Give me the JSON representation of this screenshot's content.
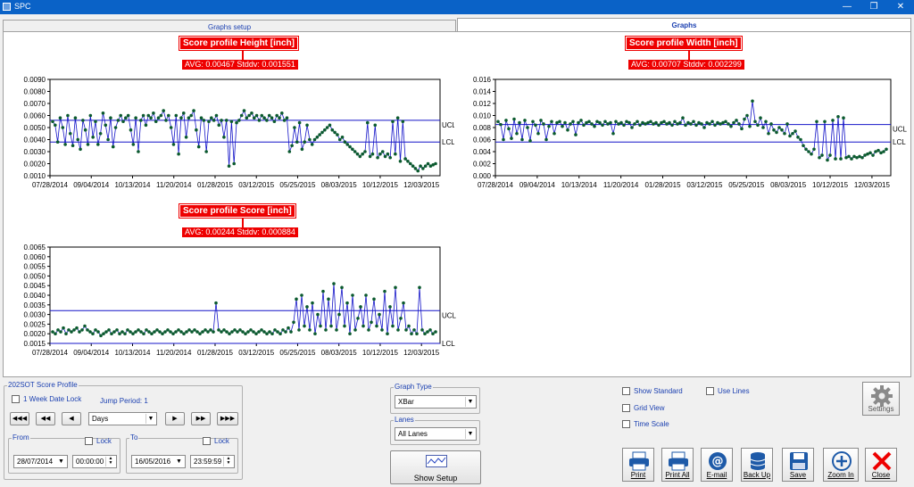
{
  "window": {
    "title": "SPC",
    "minimize": "—",
    "restore": "❐",
    "close": "✕"
  },
  "tabs": [
    {
      "label": "Graphs setup",
      "active": false
    },
    {
      "label": "Graphs",
      "active": true
    }
  ],
  "charts": [
    {
      "title": "Score profile Height  [inch]",
      "stats": "AVG: 0.00467 Stddv: 0.001551",
      "yticks": [
        "0.0090",
        "0.0080",
        "0.0070",
        "0.0060",
        "0.0050",
        "0.0040",
        "0.0030",
        "0.0020",
        "0.0010"
      ],
      "xticks": [
        "07/28/2014",
        "09/04/2014",
        "10/13/2014",
        "11/20/2014",
        "01/28/2015",
        "03/12/2015",
        "05/25/2015",
        "08/03/2015",
        "10/12/2015",
        "12/03/2015"
      ],
      "ucl_label": "UCL",
      "lcl_label": "LCL"
    },
    {
      "title": "Score profile Width  [inch]",
      "stats": "AVG: 0.00707 Stddv: 0.002299",
      "yticks": [
        "0.016",
        "0.014",
        "0.012",
        "0.010",
        "0.008",
        "0.006",
        "0.004",
        "0.002",
        "0.000"
      ],
      "xticks": [
        "07/28/2014",
        "09/04/2014",
        "10/13/2014",
        "11/20/2014",
        "01/28/2015",
        "03/12/2015",
        "05/25/2015",
        "08/03/2015",
        "10/12/2015",
        "12/03/2015"
      ],
      "ucl_label": "UCL",
      "lcl_label": "LCL"
    },
    {
      "title": "Score profile Score  [inch]",
      "stats": "AVG: 0.00244 Stddv: 0.000884",
      "yticks": [
        "0.0065",
        "0.0060",
        "0.0055",
        "0.0050",
        "0.0045",
        "0.0040",
        "0.0035",
        "0.0030",
        "0.0025",
        "0.0020",
        "0.0015"
      ],
      "xticks": [
        "07/28/2014",
        "09/04/2014",
        "10/13/2014",
        "11/20/2014",
        "01/28/2015",
        "03/12/2015",
        "05/25/2015",
        "08/03/2015",
        "10/12/2015",
        "12/03/2015"
      ],
      "ucl_label": "UCL",
      "lcl_label": "LCL"
    }
  ],
  "chart_data": [
    {
      "type": "line",
      "title": "Score profile Height  [inch]",
      "ylim": [
        0.001,
        0.009
      ],
      "ucl": 0.0056,
      "lcl": 0.0038,
      "x_range": [
        "07/28/2014",
        "12/03/2015"
      ],
      "values": [
        0.0055,
        0.0052,
        0.0038,
        0.0058,
        0.005,
        0.0036,
        0.006,
        0.0045,
        0.0035,
        0.0058,
        0.004,
        0.0032,
        0.0056,
        0.0048,
        0.0036,
        0.006,
        0.0042,
        0.0055,
        0.0036,
        0.0045,
        0.0062,
        0.0052,
        0.004,
        0.0058,
        0.0034,
        0.005,
        0.0056,
        0.006,
        0.0055,
        0.0058,
        0.006,
        0.0048,
        0.0036,
        0.0058,
        0.003,
        0.0056,
        0.006,
        0.0052,
        0.006,
        0.0058,
        0.0062,
        0.0055,
        0.0058,
        0.006,
        0.0064,
        0.0056,
        0.006,
        0.005,
        0.0036,
        0.006,
        0.0028,
        0.0058,
        0.0062,
        0.0042,
        0.0058,
        0.006,
        0.0064,
        0.0048,
        0.0034,
        0.0058,
        0.0056,
        0.003,
        0.0055,
        0.0058,
        0.0056,
        0.006,
        0.0052,
        0.0056,
        0.0042,
        0.0056,
        0.0018,
        0.0055,
        0.002,
        0.0054,
        0.0056,
        0.006,
        0.0064,
        0.0058,
        0.006,
        0.0062,
        0.0058,
        0.006,
        0.0056,
        0.006,
        0.0058,
        0.0056,
        0.006,
        0.0058,
        0.0055,
        0.006,
        0.0058,
        0.0062,
        0.0056,
        0.0058,
        0.003,
        0.0035,
        0.005,
        0.0038,
        0.0054,
        0.0032,
        0.0038,
        0.0052,
        0.004,
        0.0036,
        0.004,
        0.0042,
        0.0044,
        0.0046,
        0.0048,
        0.005,
        0.0052,
        0.0048,
        0.0046,
        0.0044,
        0.004,
        0.0042,
        0.0038,
        0.0036,
        0.0034,
        0.0032,
        0.003,
        0.0028,
        0.0026,
        0.0028,
        0.003,
        0.0054,
        0.0026,
        0.0028,
        0.0052,
        0.0025,
        0.0028,
        0.003,
        0.0026,
        0.0028,
        0.0025,
        0.0055,
        0.0028,
        0.0058,
        0.0022,
        0.0055,
        0.0024,
        0.0022,
        0.002,
        0.0018,
        0.0016,
        0.0014,
        0.0018,
        0.0016,
        0.0018,
        0.002,
        0.0018,
        0.0019,
        0.002
      ]
    },
    {
      "type": "line",
      "title": "Score profile Width  [inch]",
      "ylim": [
        0.0,
        0.016
      ],
      "ucl": 0.0085,
      "lcl": 0.0056,
      "x_range": [
        "07/28/2014",
        "12/03/2015"
      ],
      "values": [
        0.009,
        0.0085,
        0.006,
        0.0092,
        0.0078,
        0.0062,
        0.0094,
        0.007,
        0.0088,
        0.006,
        0.0092,
        0.008,
        0.0058,
        0.009,
        0.0084,
        0.007,
        0.0092,
        0.0086,
        0.006,
        0.0082,
        0.009,
        0.007,
        0.0088,
        0.009,
        0.0082,
        0.0088,
        0.0076,
        0.0086,
        0.009,
        0.0068,
        0.0088,
        0.0092,
        0.0084,
        0.0088,
        0.009,
        0.0086,
        0.0082,
        0.009,
        0.0088,
        0.0084,
        0.009,
        0.0086,
        0.0088,
        0.007,
        0.009,
        0.0086,
        0.0088,
        0.0084,
        0.009,
        0.0088,
        0.008,
        0.0086,
        0.009,
        0.0084,
        0.0088,
        0.0086,
        0.0088,
        0.009,
        0.0086,
        0.0088,
        0.0084,
        0.0088,
        0.009,
        0.0086,
        0.0088,
        0.0084,
        0.009,
        0.0086,
        0.0088,
        0.0096,
        0.0084,
        0.0088,
        0.0086,
        0.009,
        0.0084,
        0.0088,
        0.0086,
        0.008,
        0.0088,
        0.0086,
        0.009,
        0.0084,
        0.0088,
        0.0086,
        0.0088,
        0.009,
        0.0086,
        0.0082,
        0.0088,
        0.0092,
        0.0086,
        0.0078,
        0.0094,
        0.01,
        0.0082,
        0.0124,
        0.009,
        0.0084,
        0.0096,
        0.008,
        0.009,
        0.007,
        0.0086,
        0.0076,
        0.0072,
        0.008,
        0.0076,
        0.007,
        0.0086,
        0.0066,
        0.007,
        0.0074,
        0.0064,
        0.006,
        0.005,
        0.0044,
        0.004,
        0.0036,
        0.0044,
        0.009,
        0.003,
        0.0034,
        0.009,
        0.0026,
        0.0034,
        0.0092,
        0.0028,
        0.0098,
        0.0028,
        0.0096,
        0.003,
        0.0032,
        0.0028,
        0.0032,
        0.003,
        0.0032,
        0.003,
        0.0034,
        0.0036,
        0.0038,
        0.0034,
        0.004,
        0.0042,
        0.0038,
        0.004,
        0.0044
      ]
    },
    {
      "type": "line",
      "title": "Score profile Score  [inch]",
      "ylim": [
        0.0015,
        0.0065
      ],
      "ucl": 0.0032,
      "lcl": 0.0015,
      "x_range": [
        "07/28/2014",
        "12/03/2015"
      ],
      "values": [
        0.0021,
        0.002,
        0.0022,
        0.0021,
        0.0023,
        0.002,
        0.0022,
        0.0021,
        0.0022,
        0.0023,
        0.0021,
        0.0022,
        0.0024,
        0.0022,
        0.0021,
        0.002,
        0.0022,
        0.0021,
        0.0019,
        0.002,
        0.0021,
        0.0022,
        0.002,
        0.0021,
        0.0022,
        0.002,
        0.0021,
        0.002,
        0.0022,
        0.0021,
        0.002,
        0.0021,
        0.0022,
        0.0021,
        0.002,
        0.0022,
        0.0021,
        0.002,
        0.0021,
        0.0022,
        0.0021,
        0.002,
        0.0021,
        0.0022,
        0.0021,
        0.002,
        0.0021,
        0.0022,
        0.0021,
        0.002,
        0.0021,
        0.0022,
        0.0021,
        0.0022,
        0.0021,
        0.002,
        0.0021,
        0.0022,
        0.0021,
        0.0022,
        0.0021,
        0.0036,
        0.0022,
        0.0021,
        0.0022,
        0.0021,
        0.002,
        0.0021,
        0.0022,
        0.0021,
        0.0022,
        0.0021,
        0.002,
        0.0021,
        0.0022,
        0.0021,
        0.002,
        0.0021,
        0.0022,
        0.0021,
        0.002,
        0.0021,
        0.002,
        0.0022,
        0.0021,
        0.002,
        0.0022,
        0.0021,
        0.0023,
        0.0021,
        0.0026,
        0.0038,
        0.0022,
        0.004,
        0.0024,
        0.0034,
        0.0022,
        0.0036,
        0.002,
        0.003,
        0.0024,
        0.0042,
        0.0022,
        0.0038,
        0.0024,
        0.0046,
        0.0022,
        0.003,
        0.0044,
        0.0024,
        0.0036,
        0.002,
        0.004,
        0.0022,
        0.0028,
        0.0034,
        0.0024,
        0.004,
        0.0022,
        0.0026,
        0.0038,
        0.0024,
        0.003,
        0.0022,
        0.0042,
        0.002,
        0.0034,
        0.0024,
        0.0044,
        0.0022,
        0.0028,
        0.0036,
        0.0022,
        0.0024,
        0.002,
        0.0022,
        0.002,
        0.0044,
        0.0022,
        0.002,
        0.0021,
        0.0022,
        0.002,
        0.0021
      ]
    }
  ],
  "colors": {
    "line": "#1414c8",
    "marker": "#0b5a2e",
    "limit": "#1414c8",
    "label_bg": "#ee0000",
    "accent": "#1a3fb0"
  },
  "controls": {
    "group_title": "202SOT Score Profile",
    "week_lock": "1 Week Date Lock",
    "jump_period": "Jump Period: 1",
    "nav": {
      "first": "◀◀◀",
      "prev_big": "◀◀",
      "prev": "◀",
      "next": "▶",
      "next_big": "▶▶",
      "last": "▶▶▶"
    },
    "period": "Days",
    "from_label": "From",
    "to_label": "To",
    "lock_label": "Lock",
    "from_date": "28/07/2014",
    "from_time": "00:00:00",
    "to_date": "16/05/2016",
    "to_time": "23:59:59",
    "graph_type_label": "Graph Type",
    "graph_type": "XBar",
    "lanes_label": "Lanes",
    "lanes": "All Lanes",
    "show_setup": "Show Setup",
    "show_standard": "Show Standard",
    "use_lines": "Use Lines",
    "grid_view": "Grid View",
    "time_scale": "Time Scale",
    "settings": "Settings"
  },
  "actions": {
    "print": "Print",
    "print_all": "Print All",
    "email": "E-mail",
    "backup": "Back Up",
    "save": "Save",
    "zoom_in": "Zoom In",
    "close": "Close"
  }
}
